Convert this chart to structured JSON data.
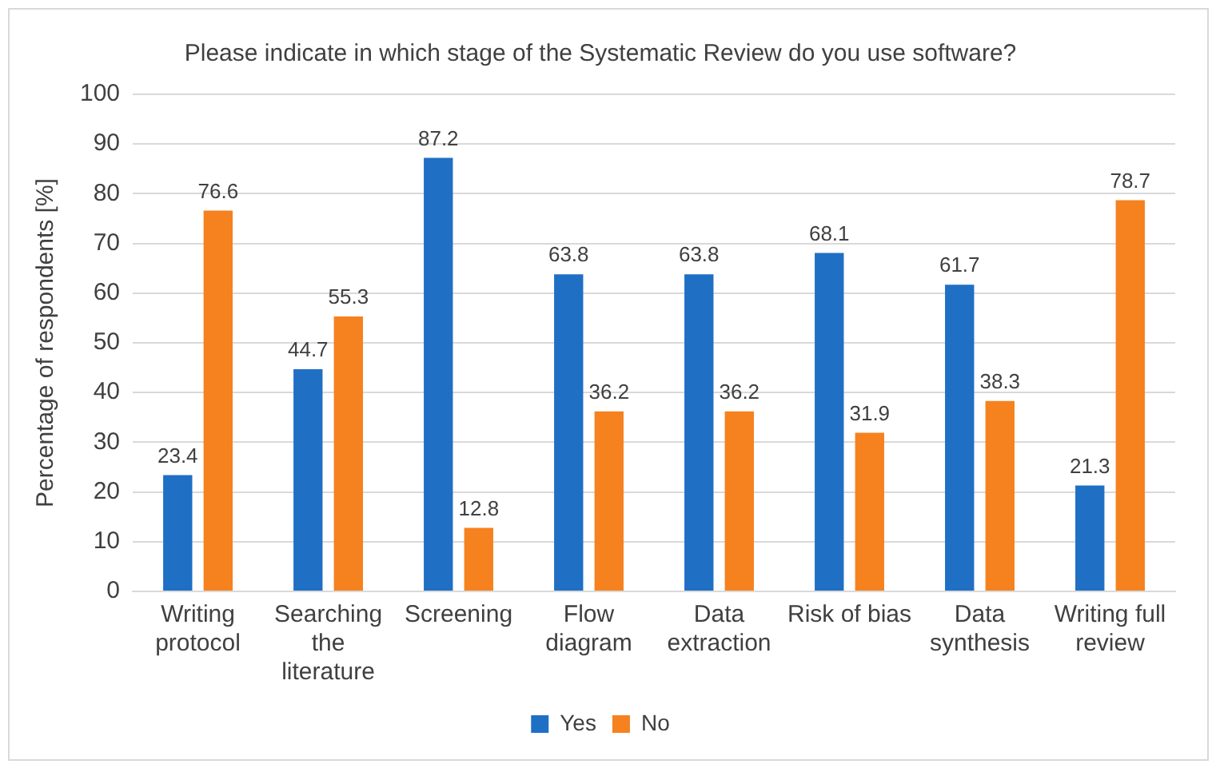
{
  "chart_data": {
    "type": "bar",
    "title": "Please indicate in which stage of the Systematic Review do you use software?",
    "ylabel": "Percentage of respondents [%]",
    "categories": [
      "Writing protocol",
      "Searching the literature",
      "Screening",
      "Flow diagram",
      "Data extraction",
      "Risk of bias",
      "Data synthesis",
      "Writing full review"
    ],
    "series": [
      {
        "name": "Yes",
        "color": "#1f6fc5",
        "values": [
          23.4,
          44.7,
          87.2,
          63.8,
          63.8,
          68.1,
          61.7,
          21.3
        ]
      },
      {
        "name": "No",
        "color": "#f5821f",
        "values": [
          76.6,
          55.3,
          12.8,
          36.2,
          36.2,
          31.9,
          38.3,
          78.7
        ]
      }
    ],
    "ylim": [
      0,
      100
    ],
    "yticks": [
      0,
      10,
      20,
      30,
      40,
      50,
      60,
      70,
      80,
      90,
      100
    ],
    "grid": "y",
    "legend": "bottom",
    "data_labels": true
  }
}
